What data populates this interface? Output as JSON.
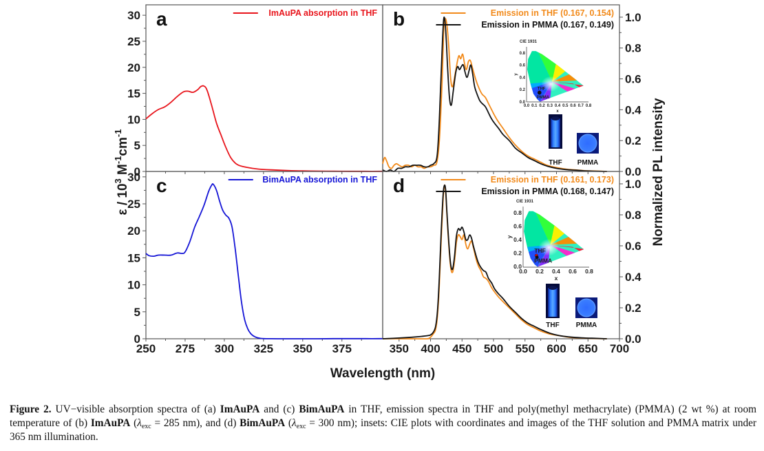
{
  "figure": {
    "caption": {
      "label": "Figure 2.",
      "parts": [
        {
          "t": " UV−visible absorption spectra of (a) ",
          "b": false
        },
        {
          "t": "ImAuPA",
          "b": true
        },
        {
          "t": " and (c) ",
          "b": false
        },
        {
          "t": "BimAuPA",
          "b": true
        },
        {
          "t": " in THF, emission spectra in THF and poly(methyl methacrylate) (PMMA) (2 wt %) at room temperature of (b) ",
          "b": false
        },
        {
          "t": "ImAuPA",
          "b": true
        },
        {
          "t": " (",
          "b": false
        },
        {
          "t": "LAMBDA285",
          "b": false
        },
        {
          "t": "), and (d) ",
          "b": false
        },
        {
          "t": "BimAuPA",
          "b": true
        },
        {
          "t": " (",
          "b": false
        },
        {
          "t": "LAMBDA300",
          "b": false
        },
        {
          "t": "); insets: CIE plots with coordinates and images of the THF solution and PMMA matrix under 365 nm illumination.",
          "b": false
        }
      ],
      "lambda_symbol": "λ",
      "lambda_sub": "exc",
      "lambda_values": {
        "LAMBDA285": " = 285 nm",
        "LAMBDA300": " = 300 nm"
      }
    },
    "shared_xlabel": "Wavelength (nm)",
    "left_ylabel": "ε / 10³ M⁻¹cm⁻¹",
    "left_ylabel_parts": {
      "eps": "ε / 10",
      "sup1": "3",
      "m": " M",
      "sup2": "-1",
      "cm": "cm",
      "sup3": "-1"
    },
    "right_ylabel": "Normalized PL intensity",
    "colors": {
      "absorption_a": "#e8141b",
      "absorption_c": "#1414d6",
      "thf": "#f28a1a",
      "pmma": "#111111",
      "axis": "#555555"
    }
  },
  "chart_data": [
    {
      "panel": "a",
      "type": "line",
      "title": "",
      "xlabel": "Wavelength (nm)",
      "ylabel": "ε / 10³ M⁻¹cm⁻¹",
      "xlim": [
        250,
        401
      ],
      "ylim": [
        0,
        32
      ],
      "xticks": [
        250,
        275,
        300,
        325,
        350,
        375
      ],
      "yticks": [
        0,
        5,
        10,
        15,
        20,
        25,
        30
      ],
      "legend_position": "top-right",
      "series": [
        {
          "name": "ImAuPA absorption in THF",
          "color": "#e8141b",
          "x": [
            250,
            254,
            258,
            262,
            266,
            270,
            274,
            277,
            280,
            283,
            285,
            287,
            289,
            292,
            295,
            298,
            301,
            304,
            307,
            310,
            314,
            318,
            322,
            330,
            340,
            350,
            360,
            370,
            380,
            390,
            401
          ],
          "y": [
            10.1,
            11.1,
            11.9,
            12.4,
            13.3,
            14.4,
            15.3,
            15.4,
            15.2,
            15.7,
            16.3,
            16.4,
            15.6,
            12.6,
            9.3,
            6.9,
            4.6,
            2.7,
            1.6,
            1.1,
            0.8,
            0.6,
            0.45,
            0.3,
            0.18,
            0.1,
            0.06,
            0.04,
            0.03,
            0.02,
            0.02
          ]
        }
      ]
    },
    {
      "panel": "b",
      "type": "line",
      "xlabel": "Wavelength (nm)",
      "ylabel": "Normalized PL intensity",
      "xlim": [
        324,
        700
      ],
      "ylim": [
        0,
        1.08
      ],
      "xticks": [
        350,
        400,
        450,
        500,
        550,
        600,
        650,
        700
      ],
      "yticks": [
        0.0,
        0.2,
        0.4,
        0.6,
        0.8,
        1.0
      ],
      "legend_position": "top-right",
      "series": [
        {
          "name": "Emission in THF (0.167, 0.154)",
          "color": "#f28a1a",
          "x": [
            324,
            327,
            330,
            334,
            338,
            342,
            346,
            350,
            355,
            360,
            365,
            370,
            375,
            380,
            385,
            390,
            395,
            400,
            405,
            410,
            414,
            418,
            421,
            423,
            426,
            429,
            432,
            435,
            439,
            442,
            445,
            448,
            451,
            454,
            457,
            460,
            463,
            466,
            470,
            474,
            478,
            482,
            487,
            492,
            497,
            502,
            508,
            515,
            525,
            535,
            545,
            555,
            565,
            575,
            585,
            600,
            615,
            630,
            645,
            660,
            680
          ],
          "y": [
            0.05,
            0.09,
            0.07,
            0.03,
            0.02,
            0.04,
            0.05,
            0.04,
            0.03,
            0.04,
            0.04,
            0.03,
            0.04,
            0.03,
            0.03,
            0.02,
            0.03,
            0.03,
            0.04,
            0.06,
            0.2,
            0.55,
            0.92,
            0.99,
            0.95,
            0.8,
            0.6,
            0.55,
            0.63,
            0.7,
            0.75,
            0.73,
            0.76,
            0.7,
            0.66,
            0.71,
            0.72,
            0.68,
            0.62,
            0.57,
            0.53,
            0.5,
            0.48,
            0.44,
            0.4,
            0.36,
            0.32,
            0.28,
            0.22,
            0.17,
            0.13,
            0.1,
            0.08,
            0.06,
            0.04,
            0.025,
            0.015,
            0.01,
            0.005,
            0.003,
            0.0
          ]
        },
        {
          "name": "Emission in PMMA (0.167, 0.149)",
          "color": "#111111",
          "x": [
            324,
            330,
            336,
            342,
            348,
            354,
            360,
            366,
            372,
            378,
            384,
            390,
            396,
            400,
            405,
            410,
            413,
            416,
            419,
            421,
            423,
            425,
            427,
            430,
            433,
            436,
            440,
            443,
            446,
            449,
            452,
            455,
            458,
            461,
            464,
            467,
            470,
            474,
            478,
            482,
            487,
            492,
            497,
            502,
            508,
            515,
            525,
            535,
            545,
            555,
            565,
            575,
            585,
            600,
            615,
            630,
            645,
            660,
            680
          ],
          "y": [
            0.01,
            0.0,
            0.01,
            0.0,
            0.02,
            0.02,
            0.03,
            0.03,
            0.04,
            0.04,
            0.04,
            0.03,
            0.03,
            0.04,
            0.05,
            0.09,
            0.25,
            0.55,
            0.85,
            0.99,
            0.97,
            0.85,
            0.68,
            0.48,
            0.43,
            0.52,
            0.64,
            0.68,
            0.66,
            0.68,
            0.69,
            0.64,
            0.61,
            0.65,
            0.69,
            0.63,
            0.55,
            0.5,
            0.46,
            0.44,
            0.42,
            0.38,
            0.34,
            0.31,
            0.28,
            0.24,
            0.2,
            0.15,
            0.12,
            0.09,
            0.07,
            0.05,
            0.035,
            0.02,
            0.012,
            0.008,
            0.004,
            0.002,
            0.0
          ]
        }
      ],
      "inset": {
        "title": "CIE 1931",
        "xlabel": "x",
        "ylabel": "y",
        "xticks": [
          "0.0",
          "0.1",
          "0.2",
          "0.3",
          "0.4",
          "0.5",
          "0.6",
          "0.7",
          "0.8"
        ],
        "yticks": [
          "0.0",
          "0.2",
          "0.4",
          "0.6",
          "0.8"
        ],
        "points": [
          {
            "label": "THF",
            "x": 0.167,
            "y": 0.154,
            "color": "#e01010"
          },
          {
            "label": "PMMA",
            "x": 0.167,
            "y": 0.149,
            "color": "#111111"
          }
        ],
        "photo_labels": [
          "THF",
          "PMMA"
        ]
      }
    },
    {
      "panel": "c",
      "type": "line",
      "xlabel": "Wavelength (nm)",
      "ylabel": "ε / 10³ M⁻¹cm⁻¹",
      "xlim": [
        250,
        401
      ],
      "ylim": [
        0,
        31
      ],
      "xticks": [
        250,
        275,
        300,
        325,
        350,
        375
      ],
      "yticks": [
        0,
        5,
        10,
        15,
        20,
        25,
        30
      ],
      "legend_position": "top-right",
      "series": [
        {
          "name": "BimAuPA absorption in THF",
          "color": "#1414d6",
          "x": [
            250,
            252,
            255,
            258,
            262,
            266,
            270,
            273,
            275,
            278,
            281,
            284,
            287,
            290,
            292,
            293,
            295,
            297,
            299,
            301,
            303,
            305,
            307,
            309,
            311,
            313,
            315,
            317,
            319,
            321,
            323,
            325,
            330,
            340,
            350,
            360,
            370,
            380,
            390,
            401
          ],
          "y": [
            15.8,
            15.4,
            15.3,
            15.5,
            15.5,
            15.5,
            15.9,
            15.8,
            16.1,
            18.0,
            20.6,
            22.6,
            24.7,
            27.3,
            28.5,
            28.6,
            27.5,
            25.5,
            23.8,
            22.9,
            22.3,
            20.6,
            16.5,
            11.5,
            6.7,
            3.5,
            1.8,
            0.9,
            0.45,
            0.2,
            0.08,
            0.03,
            0.01,
            0.0,
            0.0,
            0.0,
            0.02,
            0.03,
            0.02,
            0.02
          ]
        }
      ]
    },
    {
      "panel": "d",
      "type": "line",
      "xlabel": "Wavelength (nm)",
      "ylabel": "Normalized PL intensity",
      "xlim": [
        324,
        700
      ],
      "ylim": [
        0,
        1.08
      ],
      "xticks": [
        350,
        400,
        450,
        500,
        550,
        600,
        650,
        700
      ],
      "yticks": [
        0.0,
        0.2,
        0.4,
        0.6,
        0.8,
        1.0
      ],
      "legend_position": "top-right",
      "series": [
        {
          "name": "Emission in THF (0.161, 0.173)",
          "color": "#f28a1a",
          "x": [
            324,
            350,
            380,
            395,
            400,
            404,
            408,
            411,
            414,
            417,
            420,
            422,
            424,
            426,
            429,
            432,
            435,
            438,
            441,
            444,
            447,
            450,
            453,
            456,
            459,
            462,
            465,
            468,
            472,
            476,
            480,
            484,
            488,
            492,
            497,
            502,
            508,
            515,
            525,
            535,
            545,
            555,
            565,
            575,
            590,
            605,
            620,
            640,
            660,
            680
          ],
          "y": [
            0.0,
            0.0,
            0.0,
            0.0,
            0.01,
            0.03,
            0.06,
            0.15,
            0.35,
            0.65,
            0.9,
            0.99,
            0.95,
            0.8,
            0.6,
            0.46,
            0.43,
            0.5,
            0.62,
            0.67,
            0.66,
            0.64,
            0.67,
            0.61,
            0.58,
            0.61,
            0.63,
            0.59,
            0.52,
            0.47,
            0.44,
            0.4,
            0.39,
            0.37,
            0.33,
            0.3,
            0.27,
            0.24,
            0.2,
            0.16,
            0.12,
            0.09,
            0.07,
            0.05,
            0.03,
            0.02,
            0.01,
            0.005,
            0.002,
            0.0
          ]
        },
        {
          "name": "Emission in PMMA (0.168, 0.147)",
          "color": "#111111",
          "x": [
            324,
            350,
            370,
            385,
            395,
            400,
            404,
            408,
            411,
            414,
            417,
            420,
            422,
            424,
            426,
            429,
            432,
            435,
            438,
            441,
            444,
            447,
            450,
            453,
            456,
            459,
            462,
            465,
            468,
            472,
            476,
            480,
            484,
            488,
            492,
            497,
            502,
            508,
            515,
            525,
            535,
            545,
            555,
            565,
            575,
            590,
            605,
            620,
            640,
            660,
            680
          ],
          "y": [
            0.0,
            0.005,
            0.01,
            0.015,
            0.02,
            0.025,
            0.04,
            0.08,
            0.18,
            0.4,
            0.7,
            0.93,
            0.99,
            0.96,
            0.82,
            0.62,
            0.48,
            0.45,
            0.53,
            0.66,
            0.71,
            0.7,
            0.72,
            0.69,
            0.64,
            0.64,
            0.67,
            0.65,
            0.6,
            0.54,
            0.49,
            0.46,
            0.44,
            0.43,
            0.39,
            0.36,
            0.32,
            0.29,
            0.26,
            0.21,
            0.17,
            0.13,
            0.1,
            0.08,
            0.06,
            0.035,
            0.02,
            0.012,
            0.006,
            0.003,
            0.0
          ]
        }
      ],
      "inset": {
        "title": "CIE 1931",
        "xlabel": "x",
        "ylabel": "y",
        "xticks": [
          "0.0",
          "0.2",
          "0.4",
          "0.6",
          "0.8"
        ],
        "yticks": [
          "0.0",
          "0.2",
          "0.4",
          "0.6",
          "0.8"
        ],
        "points": [
          {
            "label": "THF",
            "x": 0.161,
            "y": 0.173,
            "color": "#e01010"
          },
          {
            "label": "PMMA",
            "x": 0.168,
            "y": 0.147,
            "color": "#111111"
          }
        ],
        "photo_labels": [
          "THF",
          "PMMA"
        ]
      }
    }
  ]
}
